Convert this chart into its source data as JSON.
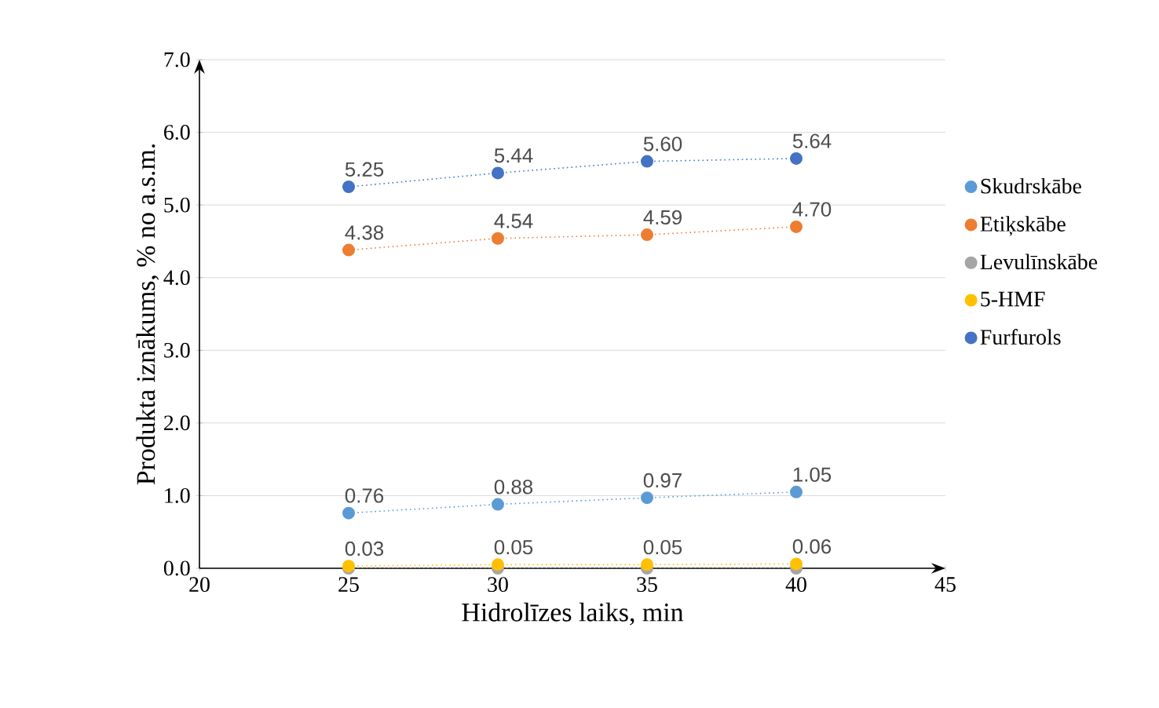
{
  "chart_data": {
    "type": "line",
    "xlabel": "Hidrolīzes laiks, min",
    "ylabel": "Produkta iznākums, % no a.s.m.",
    "x": [
      25,
      30,
      35,
      40
    ],
    "series": [
      {
        "name": "Skudrskābe",
        "color": "#5b9bd5",
        "values": [
          0.76,
          0.88,
          0.97,
          1.05
        ],
        "value_labels": [
          "0.76",
          "0.88",
          "0.97",
          "1.05"
        ]
      },
      {
        "name": "Etiķskābe",
        "color": "#ed7d31",
        "values": [
          4.38,
          4.54,
          4.59,
          4.7
        ],
        "value_labels": [
          "4.38",
          "4.54",
          "4.59",
          "4.70"
        ]
      },
      {
        "name": "Levulīnskābe",
        "color": "#a5a5a5",
        "values": [
          0.0,
          0.0,
          0.0,
          0.0
        ]
      },
      {
        "name": "5-HMF",
        "color": "#ffc000",
        "values": [
          0.03,
          0.05,
          0.05,
          0.06
        ],
        "value_labels": [
          "0.03",
          "0.05",
          "0.05",
          "0.06"
        ]
      },
      {
        "name": "Furfurols",
        "color": "#4472c4",
        "values": [
          5.25,
          5.44,
          5.6,
          5.64
        ],
        "value_labels": [
          "5.25",
          "5.44",
          "5.60",
          "5.64"
        ]
      }
    ],
    "xlim": [
      20,
      45
    ],
    "xticks": [
      20,
      25,
      30,
      35,
      40,
      45
    ],
    "ylim": [
      0,
      7
    ],
    "yticks": [
      {
        "value": 0,
        "label": "0.0"
      },
      {
        "value": 1,
        "label": "1.0"
      },
      {
        "value": 2,
        "label": "2.0"
      },
      {
        "value": 3,
        "label": "3.0"
      },
      {
        "value": 4,
        "label": "4.0"
      },
      {
        "value": 5,
        "label": "5.0"
      },
      {
        "value": 6,
        "label": "6.0"
      },
      {
        "value": 7,
        "label": "7.0"
      }
    ],
    "grid": "y",
    "legend": "right",
    "marker": "circle",
    "line_style": "dotted"
  }
}
